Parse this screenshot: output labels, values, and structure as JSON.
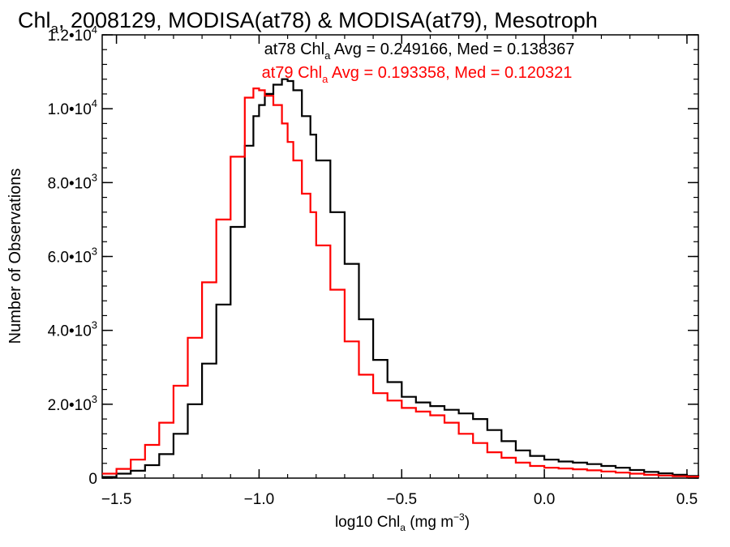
{
  "chart_data": {
    "type": "line",
    "title": {
      "p1": "Chl",
      "p1_sub": "a",
      "p2": ", 2008129, MODISA(at78) & MODISA(at79), Mesotroph"
    },
    "xlabel": {
      "p1": "log10 Chl",
      "p1_sub": "a",
      "p2": " (mg m",
      "p2_sup": "−3",
      "p3": ")"
    },
    "ylabel": "Number of Observations",
    "xlim": [
      -1.55,
      0.54
    ],
    "ylim": [
      0,
      12000
    ],
    "x_ticks": [
      {
        "value": -1.5,
        "label": "−1.5"
      },
      {
        "value": -1.0,
        "label": "−1.0"
      },
      {
        "value": -0.5,
        "label": "−0.5"
      },
      {
        "value": 0.0,
        "label": "0.0"
      },
      {
        "value": 0.5,
        "label": "0.5"
      }
    ],
    "y_ticks": [
      {
        "value": 0,
        "mant": "0",
        "exp": ""
      },
      {
        "value": 2000,
        "mant": "2.0•10",
        "exp": "3"
      },
      {
        "value": 4000,
        "mant": "4.0•10",
        "exp": "3"
      },
      {
        "value": 6000,
        "mant": "6.0•10",
        "exp": "3"
      },
      {
        "value": 8000,
        "mant": "8.0•10",
        "exp": "3"
      },
      {
        "value": 10000,
        "mant": "1.0•10",
        "exp": "4"
      },
      {
        "value": 12000,
        "mant": "1.2•10",
        "exp": "4"
      }
    ],
    "grid": false,
    "legend_placement": "top-center",
    "series": [
      {
        "name": "at78",
        "color": "#000000",
        "stats": {
          "p1": "at78 Chl",
          "p1_sub": "a",
          "p2": " Avg = 0.249166, Med = 0.138367"
        },
        "x": [
          -1.55,
          -1.5,
          -1.45,
          -1.4,
          -1.35,
          -1.3,
          -1.25,
          -1.2,
          -1.15,
          -1.1,
          -1.05,
          -1.02,
          -1.0,
          -0.98,
          -0.95,
          -0.92,
          -0.9,
          -0.88,
          -0.85,
          -0.82,
          -0.8,
          -0.75,
          -0.7,
          -0.65,
          -0.6,
          -0.55,
          -0.5,
          -0.45,
          -0.4,
          -0.35,
          -0.3,
          -0.25,
          -0.2,
          -0.15,
          -0.1,
          -0.05,
          0.0,
          0.05,
          0.1,
          0.15,
          0.2,
          0.25,
          0.3,
          0.35,
          0.4,
          0.45,
          0.5,
          0.54
        ],
        "y": [
          30,
          120,
          200,
          350,
          650,
          1200,
          2000,
          3100,
          4700,
          6800,
          9000,
          9800,
          10100,
          10400,
          10650,
          10800,
          10750,
          10500,
          9800,
          9300,
          8600,
          7200,
          5800,
          4300,
          3200,
          2600,
          2200,
          2050,
          1950,
          1850,
          1750,
          1600,
          1300,
          1000,
          750,
          600,
          500,
          450,
          420,
          380,
          330,
          280,
          220,
          170,
          130,
          90,
          60,
          50
        ]
      },
      {
        "name": "at79",
        "color": "#ff0000",
        "stats": {
          "p1": "at79 Chl",
          "p1_sub": "a",
          "p2": " Avg = 0.193358, Med = 0.120321"
        },
        "x": [
          -1.55,
          -1.5,
          -1.45,
          -1.4,
          -1.35,
          -1.3,
          -1.25,
          -1.2,
          -1.15,
          -1.1,
          -1.05,
          -1.02,
          -1.0,
          -0.98,
          -0.95,
          -0.92,
          -0.9,
          -0.88,
          -0.85,
          -0.82,
          -0.8,
          -0.75,
          -0.7,
          -0.65,
          -0.6,
          -0.55,
          -0.5,
          -0.45,
          -0.4,
          -0.35,
          -0.3,
          -0.25,
          -0.2,
          -0.15,
          -0.1,
          -0.05,
          0.0,
          0.05,
          0.1,
          0.15,
          0.2,
          0.25,
          0.3,
          0.35,
          0.4,
          0.45,
          0.5,
          0.54
        ],
        "y": [
          120,
          250,
          500,
          900,
          1500,
          2500,
          3800,
          5300,
          7000,
          8700,
          10300,
          10550,
          10500,
          10350,
          10100,
          9600,
          9100,
          8600,
          7700,
          7200,
          6300,
          5100,
          3700,
          2800,
          2300,
          2100,
          1900,
          1800,
          1700,
          1500,
          1200,
          950,
          700,
          550,
          420,
          330,
          280,
          260,
          240,
          210,
          180,
          150,
          120,
          90,
          70,
          50,
          40,
          30
        ]
      }
    ]
  }
}
